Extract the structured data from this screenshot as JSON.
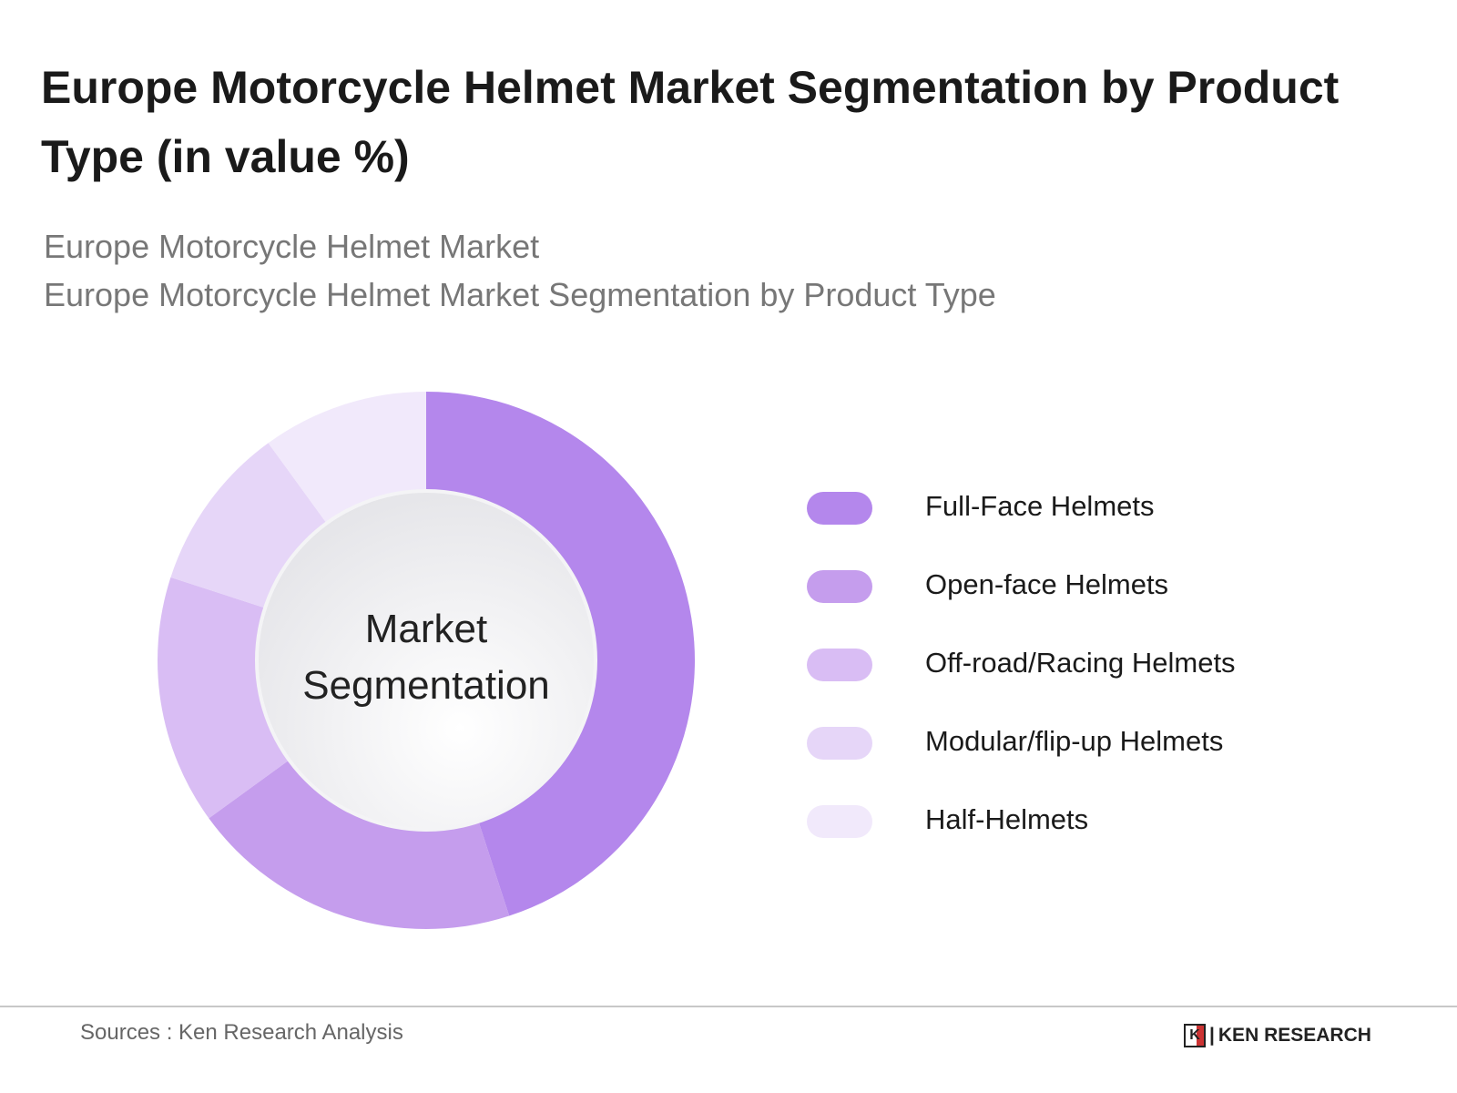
{
  "title": "Europe Motorcycle Helmet Market Segmentation by Product Type (in value %)",
  "subtitles": [
    "Europe Motorcycle Helmet Market",
    "Europe Motorcycle Helmet Market Segmentation by Product Type"
  ],
  "center_label": [
    "Market",
    "Segmentation"
  ],
  "source": "Sources : Ken Research Analysis",
  "logo": "KEN RESEARCH",
  "chart_data": {
    "type": "pie",
    "variant": "donut",
    "title": "Europe Motorcycle Helmet Market Segmentation by Product Type (in value %)",
    "categories": [
      "Full-Face Helmets",
      "Open-face Helmets",
      "Off-road/Racing Helmets",
      "Modular/flip-up Helmets",
      "Half-Helmets"
    ],
    "values": [
      45,
      20,
      15,
      10,
      10
    ],
    "colors": [
      "#b487ec",
      "#c59ded",
      "#d9bdf4",
      "#e6d6f8",
      "#f1e9fb"
    ],
    "legend_position": "right",
    "start_angle": "12 o'clock, clockwise"
  }
}
